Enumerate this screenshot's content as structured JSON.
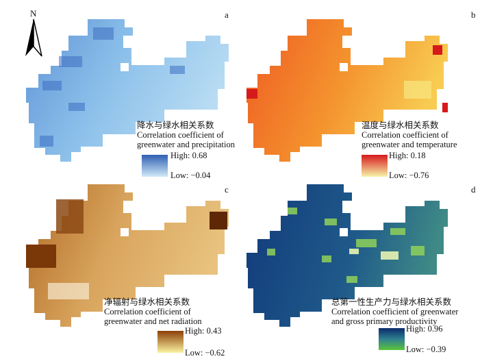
{
  "north_arrow": {
    "label": "N"
  },
  "panels": [
    {
      "letter": "a",
      "title_cn": "降水与绿水相关系数",
      "title_en_1": "Correlation coefficient of",
      "title_en_2": "greenwater and precipitation",
      "high": "High: 0.68",
      "low": "Low: −0.04",
      "color_high": "#2f5fb3",
      "color_low": "#cfe9f7"
    },
    {
      "letter": "b",
      "title_cn": "温度与绿水相关系数",
      "title_en_1": "Correlation coefficient of",
      "title_en_2": "greenwater and temperature",
      "high": "High: 0.18",
      "low": "Low: −0.76",
      "color_high": "#d7191c",
      "color_low": "#f6f3a8"
    },
    {
      "letter": "c",
      "title_cn": "净辐射与绿水相关系数",
      "title_en_1": "Correlation coefficient of",
      "title_en_2": "greenwater and net radiation",
      "high": "High: 0.43",
      "low": "Low: −0.62",
      "color_high": "#8c3f0a",
      "color_low": "#faf3a0"
    },
    {
      "letter": "d",
      "title_cn": "总第一性生产力与绿水相关系数",
      "title_en_1": "Correlation coefficient of greenwater",
      "title_en_2": "and gross primary productivity",
      "high": "High: 0.96",
      "low": "Low: −0.39",
      "color_high": "#0b2a6b",
      "color_low": "#5cc43a"
    }
  ]
}
